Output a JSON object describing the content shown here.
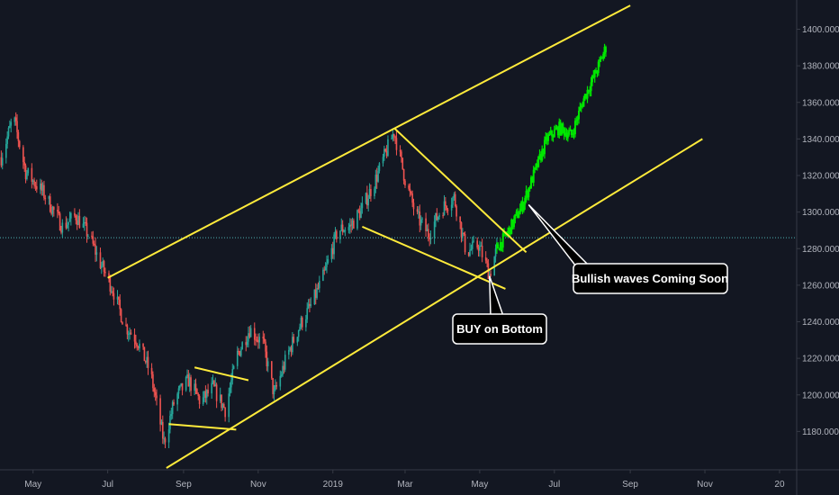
{
  "chart_data": {
    "type": "candlestick",
    "title": "",
    "xlabel": "",
    "ylabel": "",
    "ylim": [
      1160,
      1416
    ],
    "y_ticks": [
      1180,
      1200,
      1220,
      1240,
      1260,
      1280,
      1300,
      1320,
      1340,
      1360,
      1380,
      1400
    ],
    "y_tick_labels": [
      "1180.000",
      "1200.000",
      "1220.000",
      "1240.000",
      "1260.000",
      "1280.000",
      "1300.000",
      "1320.000",
      "1340.000",
      "1360.000",
      "1380.000",
      "1400.000"
    ],
    "x_ticks": [
      "2018-05-01",
      "2018-07-01",
      "2018-09-01",
      "2018-11-01",
      "2019-01-01",
      "2019-03-01",
      "2019-05-01",
      "2019-07-01",
      "2019-09-01",
      "2019-11-01",
      "2020-01-01"
    ],
    "x_tick_labels": [
      "May",
      "Jul",
      "Sep",
      "Nov",
      "2019",
      "Mar",
      "May",
      "Jul",
      "Sep",
      "Nov",
      "20"
    ],
    "xlim": [
      "2018-04-04",
      "2020-01-15"
    ],
    "price_line": 1286,
    "grid": false,
    "colors": {
      "background": "#131722",
      "up": "#26a69a",
      "down": "#ef5350",
      "projection": "#00e600",
      "trendline": "#ffeb3b",
      "price_line": "#4fb3b3",
      "axis_text": "#b2b5be",
      "callout_bg": "#000000",
      "callout_border": "#ffffff",
      "callout_text": "#ffffff"
    },
    "historical_path": [
      [
        "2018-04-05",
        1330
      ],
      [
        "2018-04-15",
        1352
      ],
      [
        "2018-04-25",
        1322
      ],
      [
        "2018-05-10",
        1310
      ],
      [
        "2018-05-25",
        1292
      ],
      [
        "2018-06-05",
        1298
      ],
      [
        "2018-06-15",
        1288
      ],
      [
        "2018-06-25",
        1272
      ],
      [
        "2018-07-05",
        1258
      ],
      [
        "2018-07-15",
        1238
      ],
      [
        "2018-07-25",
        1230
      ],
      [
        "2018-08-05",
        1212
      ],
      [
        "2018-08-16",
        1174
      ],
      [
        "2018-08-25",
        1198
      ],
      [
        "2018-09-05",
        1208
      ],
      [
        "2018-09-15",
        1196
      ],
      [
        "2018-09-25",
        1204
      ],
      [
        "2018-10-05",
        1192
      ],
      [
        "2018-10-15",
        1222
      ],
      [
        "2018-10-25",
        1236
      ],
      [
        "2018-11-05",
        1228
      ],
      [
        "2018-11-14",
        1200
      ],
      [
        "2018-11-25",
        1222
      ],
      [
        "2018-12-05",
        1238
      ],
      [
        "2018-12-15",
        1250
      ],
      [
        "2018-12-25",
        1266
      ],
      [
        "2019-01-05",
        1290
      ],
      [
        "2019-01-15",
        1292
      ],
      [
        "2019-01-25",
        1302
      ],
      [
        "2019-02-05",
        1318
      ],
      [
        "2019-02-20",
        1344
      ],
      [
        "2019-03-01",
        1318
      ],
      [
        "2019-03-10",
        1298
      ],
      [
        "2019-03-20",
        1288
      ],
      [
        "2019-03-31",
        1302
      ],
      [
        "2019-04-10",
        1308
      ],
      [
        "2019-04-20",
        1278
      ],
      [
        "2019-04-30",
        1282
      ],
      [
        "2019-05-09",
        1266
      ],
      [
        "2019-05-15",
        1280
      ]
    ],
    "projection_path": [
      [
        "2019-05-15",
        1280
      ],
      [
        "2019-05-25",
        1290
      ],
      [
        "2019-06-05",
        1304
      ],
      [
        "2019-06-15",
        1322
      ],
      [
        "2019-06-25",
        1340
      ],
      [
        "2019-07-05",
        1346
      ],
      [
        "2019-07-15",
        1342
      ],
      [
        "2019-07-25",
        1362
      ],
      [
        "2019-08-05",
        1378
      ],
      [
        "2019-08-12",
        1390
      ]
    ],
    "trendlines": [
      {
        "name": "channel-upper",
        "points": [
          [
            "2018-07-01",
            1264
          ],
          [
            "2019-09-01",
            1413
          ]
        ]
      },
      {
        "name": "channel-lower",
        "points": [
          [
            "2018-08-18",
            1160
          ],
          [
            "2019-10-30",
            1340
          ]
        ]
      },
      {
        "name": "wedge-upper",
        "points": [
          [
            "2019-02-20",
            1346
          ],
          [
            "2019-06-08",
            1278
          ]
        ]
      },
      {
        "name": "wedge-lower",
        "points": [
          [
            "2019-01-25",
            1292
          ],
          [
            "2019-05-22",
            1258
          ]
        ]
      },
      {
        "name": "flag-upper",
        "points": [
          [
            "2018-09-10",
            1215
          ],
          [
            "2018-10-24",
            1208
          ]
        ]
      },
      {
        "name": "flag-lower",
        "points": [
          [
            "2018-08-20",
            1184
          ],
          [
            "2018-10-14",
            1181
          ]
        ]
      }
    ],
    "annotations": [
      {
        "name": "buy-on-bottom",
        "text": "BUY on Bottom",
        "point": [
          "2019-05-09",
          1265
        ]
      },
      {
        "name": "bullish-waves",
        "text": "Bullish waves Coming Soon",
        "point": [
          "2019-06-10",
          1304
        ]
      }
    ]
  }
}
